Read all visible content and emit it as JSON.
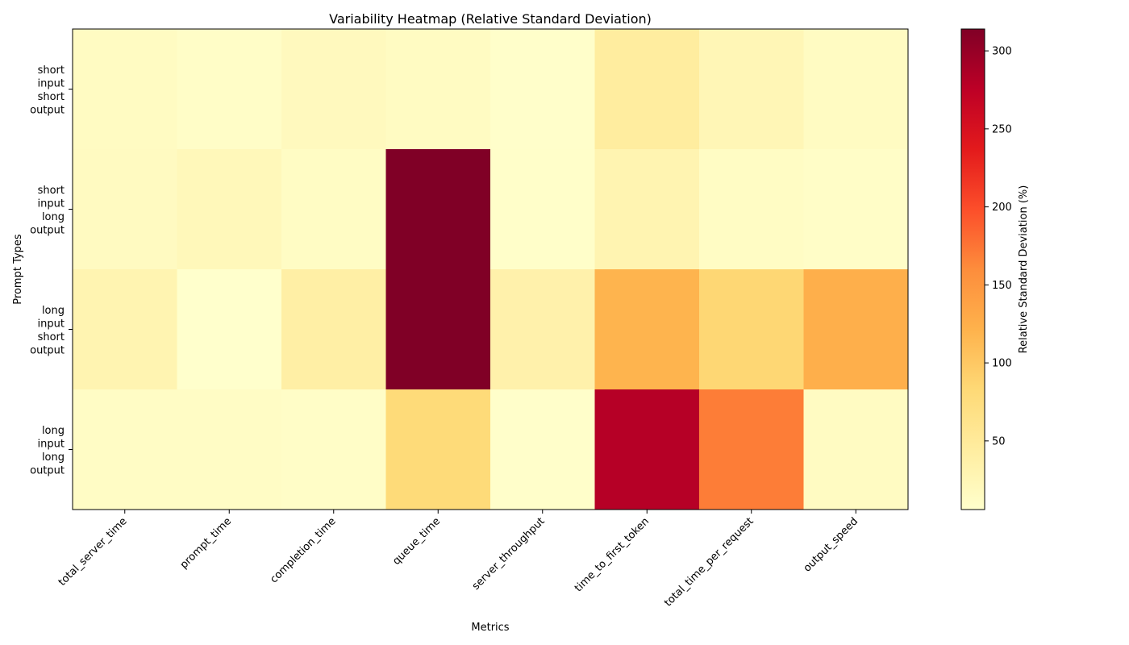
{
  "chart_data": {
    "type": "heatmap",
    "title": "Variability Heatmap (Relative Standard Deviation)",
    "xlabel": "Metrics",
    "ylabel": "Prompt Types",
    "x_categories": [
      "total_server_time",
      "prompt_time",
      "completion_time",
      "queue_time",
      "server_throughput",
      "time_to_first_token",
      "total_time_per_request",
      "output_speed"
    ],
    "y_categories": [
      [
        "short",
        "input",
        "short",
        "output"
      ],
      [
        "short",
        "input",
        "long",
        "output"
      ],
      [
        "long",
        "input",
        "short",
        "output"
      ],
      [
        "long",
        "input",
        "long",
        "output"
      ]
    ],
    "values": [
      [
        15,
        10,
        18,
        15,
        8,
        45,
        25,
        15
      ],
      [
        16,
        22,
        13,
        314,
        9,
        30,
        13,
        10
      ],
      [
        30,
        6,
        40,
        314,
        35,
        120,
        85,
        125
      ],
      [
        12,
        12,
        10,
        80,
        8,
        280,
        170,
        15
      ]
    ],
    "colorscale": "YlOrRd",
    "vmin": 6,
    "vmax": 314,
    "colorbar": {
      "label": "Relative Standard Deviation (%)",
      "ticks": [
        50,
        100,
        150,
        200,
        250,
        300
      ]
    }
  }
}
